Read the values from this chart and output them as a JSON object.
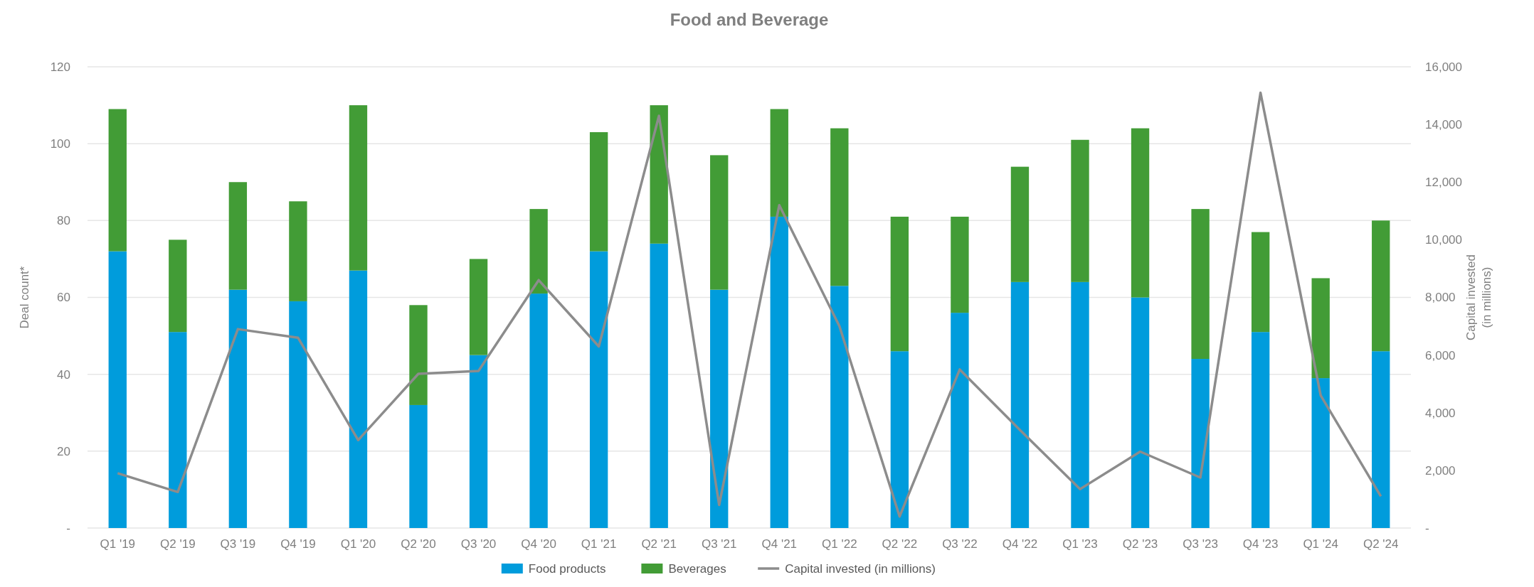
{
  "chart_data": {
    "type": "bar",
    "title": "Food and Beverage",
    "ylabel": "Deal count*",
    "y2label": "Capital invested\n(in millions)",
    "stacked": true,
    "grid": "y",
    "legend": "bottom",
    "categories": [
      "Q1 '19",
      "Q2 '19",
      "Q3 '19",
      "Q4 '19",
      "Q1 '20",
      "Q2 '20",
      "Q3 '20",
      "Q4 '20",
      "Q1 '21",
      "Q2 '21",
      "Q3 '21",
      "Q4 '21",
      "Q1 '22",
      "Q2 '22",
      "Q3 '22",
      "Q4 '22",
      "Q1 '23",
      "Q2 '23",
      "Q3 '23",
      "Q4 '23",
      "Q1 '24",
      "Q2 '24"
    ],
    "ylim": [
      0,
      120
    ],
    "yticks": [
      {
        "value": 0,
        "label": "-"
      },
      20,
      40,
      60,
      80,
      100,
      120
    ],
    "y2lim": [
      0,
      16000
    ],
    "y2ticks": [
      {
        "value": 0,
        "label": "-"
      },
      {
        "value": 2000,
        "label": "2,000"
      },
      {
        "value": 4000,
        "label": "4,000"
      },
      {
        "value": 6000,
        "label": "6,000"
      },
      {
        "value": 8000,
        "label": "8,000"
      },
      {
        "value": 10000,
        "label": "10,000"
      },
      {
        "value": 12000,
        "label": "12,000"
      },
      {
        "value": 14000,
        "label": "14,000"
      },
      {
        "value": 16000,
        "label": "16,000"
      }
    ],
    "series": [
      {
        "name": "Food products",
        "color": "#009cdc",
        "values": [
          72,
          51,
          62,
          59,
          67,
          32,
          45,
          61,
          72,
          74,
          62,
          81,
          63,
          46,
          56,
          64,
          64,
          60,
          44,
          51,
          39,
          46
        ]
      },
      {
        "name": "Beverages",
        "color": "#429c36",
        "values": [
          37,
          24,
          28,
          26,
          43,
          26,
          25,
          22,
          31,
          36,
          35,
          28,
          41,
          35,
          25,
          30,
          37,
          44,
          39,
          26,
          26,
          34
        ]
      },
      {
        "name": "Capital invested (in millions)",
        "type": "line",
        "axis": "y2",
        "color": "#8c8c8c",
        "values": [
          1900,
          1250,
          6900,
          6600,
          3050,
          5350,
          5450,
          8600,
          6300,
          14300,
          800,
          11200,
          7000,
          400,
          5500,
          3400,
          1350,
          2650,
          1750,
          15100,
          4600,
          1100
        ]
      }
    ]
  }
}
